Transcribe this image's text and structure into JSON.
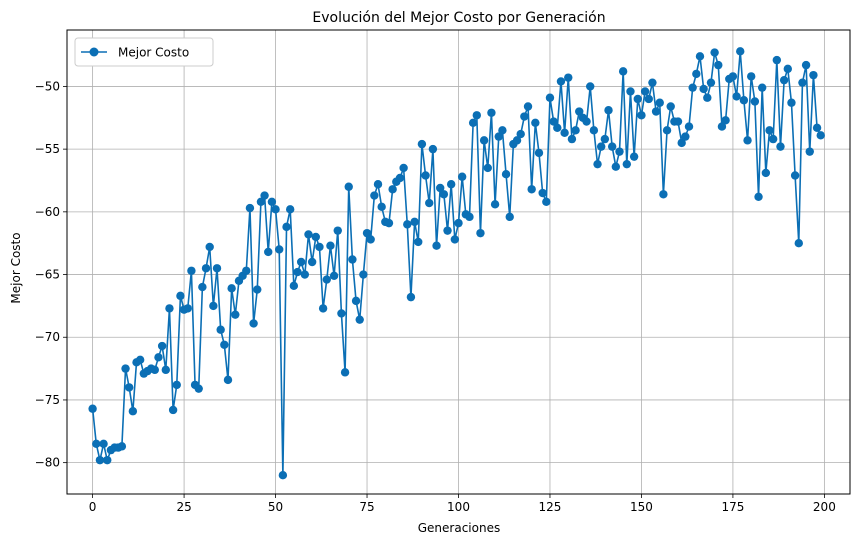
{
  "chart_data": {
    "type": "line",
    "title": "Evolución del Mejor Costo por Generación",
    "xlabel": "Generaciones",
    "ylabel": "Mejor Costo",
    "xlim": [
      -7,
      207
    ],
    "ylim": [
      -82.5,
      -45.5
    ],
    "xticks": [
      0,
      25,
      50,
      75,
      100,
      125,
      150,
      175,
      200
    ],
    "yticks": [
      -80,
      -75,
      -70,
      -65,
      -60,
      -55,
      -50
    ],
    "grid": true,
    "legend_position": "top-left",
    "series": [
      {
        "name": "Mejor Costo",
        "color": "#0b6fb5",
        "marker": "circle",
        "values": [
          -75.7,
          -78.5,
          -79.8,
          -78.5,
          -79.8,
          -79.0,
          -78.8,
          -78.8,
          -78.7,
          -72.5,
          -74.0,
          -75.9,
          -72.0,
          -71.8,
          -72.9,
          -72.7,
          -72.5,
          -72.6,
          -71.6,
          -70.7,
          -72.6,
          -67.7,
          -75.8,
          -73.8,
          -66.7,
          -67.8,
          -67.7,
          -64.7,
          -73.8,
          -74.1,
          -66.0,
          -64.5,
          -62.8,
          -67.5,
          -64.5,
          -69.4,
          -70.6,
          -73.4,
          -66.1,
          -68.2,
          -65.5,
          -65.1,
          -64.7,
          -59.7,
          -68.9,
          -66.2,
          -59.2,
          -58.7,
          -63.2,
          -59.2,
          -59.8,
          -63.0,
          -81.0,
          -61.2,
          -59.8,
          -65.9,
          -64.8,
          -64.0,
          -65.0,
          -61.8,
          -64.0,
          -62.0,
          -62.8,
          -67.7,
          -65.4,
          -62.7,
          -65.1,
          -61.5,
          -68.1,
          -72.8,
          -58.0,
          -63.8,
          -67.1,
          -68.6,
          -65.0,
          -61.7,
          -62.2,
          -58.7,
          -57.8,
          -59.6,
          -60.8,
          -60.9,
          -58.2,
          -57.6,
          -57.3,
          -56.5,
          -61.0,
          -66.8,
          -60.8,
          -62.4,
          -54.6,
          -57.1,
          -59.3,
          -55.0,
          -62.7,
          -58.1,
          -58.6,
          -61.5,
          -57.8,
          -62.2,
          -60.9,
          -57.2,
          -60.2,
          -60.4,
          -52.9,
          -52.3,
          -61.7,
          -54.3,
          -56.5,
          -52.1,
          -59.4,
          -54.0,
          -53.5,
          -57.0,
          -60.4,
          -54.6,
          -54.3,
          -53.8,
          -52.4,
          -51.6,
          -58.2,
          -52.9,
          -55.3,
          -58.5,
          -59.2,
          -50.9,
          -52.8,
          -53.3,
          -49.6,
          -53.7,
          -49.3,
          -54.2,
          -53.5,
          -52.0,
          -52.5,
          -52.8,
          -50.0,
          -53.5,
          -56.2,
          -54.8,
          -54.2,
          -51.9,
          -54.8,
          -56.4,
          -55.2,
          -48.8,
          -56.2,
          -50.4,
          -55.6,
          -51.0,
          -52.3,
          -50.4,
          -51.0,
          -49.7,
          -52.0,
          -51.3,
          -58.6,
          -53.5,
          -51.6,
          -52.8,
          -52.8,
          -54.5,
          -54.0,
          -53.2,
          -50.1,
          -49.0,
          -47.6,
          -50.2,
          -50.9,
          -49.7,
          -47.3,
          -48.3,
          -53.2,
          -52.7,
          -49.4,
          -49.2,
          -50.8,
          -47.2,
          -51.1,
          -54.3,
          -49.2,
          -51.2,
          -58.8,
          -50.1,
          -56.9,
          -53.5,
          -54.2,
          -47.9,
          -54.8,
          -49.5,
          -48.6,
          -51.3,
          -57.1,
          -62.5,
          -49.7,
          -48.3,
          -55.2,
          -49.1,
          -53.3,
          -53.9
        ]
      }
    ]
  }
}
